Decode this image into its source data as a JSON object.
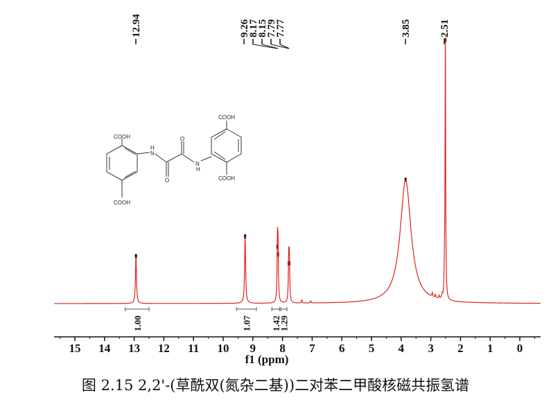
{
  "chart_data": {
    "type": "line",
    "title": "",
    "xlabel": "f1 (ppm)",
    "ylabel": "",
    "xlim": [
      15.7,
      -0.7
    ],
    "x_reversed": true,
    "ticks": [
      "15",
      "14",
      "13",
      "12",
      "11",
      "10",
      "9",
      "8",
      "7",
      "6",
      "5",
      "4",
      "3",
      "2",
      "1",
      "0"
    ],
    "grid": false,
    "series_color": "#e02020",
    "intensity_scale": "relative, tallest peak = 100",
    "peaks": [
      {
        "label": "12.94",
        "ppm": 12.94,
        "intensity": 18,
        "width": 0.02
      },
      {
        "label": "9.26",
        "ppm": 9.26,
        "intensity": 25.5,
        "width": 0.02
      },
      {
        "label": "8.17",
        "ppm": 8.17,
        "intensity": 21.6,
        "width": 0.015
      },
      {
        "label": "8.15",
        "ppm": 8.15,
        "intensity": 18.7,
        "width": 0.015
      },
      {
        "label": "7.79",
        "ppm": 7.79,
        "intensity": 15.3,
        "width": 0.015
      },
      {
        "label": "7.77",
        "ppm": 7.77,
        "intensity": 15.3,
        "width": 0.015
      },
      {
        "label": "3.85",
        "ppm": 3.85,
        "intensity": 47,
        "width": 0.22
      },
      {
        "label": "2.51",
        "ppm": 2.51,
        "intensity": 100,
        "width": 0.012
      }
    ],
    "minor_peaks": [
      {
        "ppm": 7.35,
        "intensity": 1.2
      },
      {
        "ppm": 7.05,
        "intensity": 0.8
      },
      {
        "ppm": 2.95,
        "intensity": 1.5
      },
      {
        "ppm": 2.85,
        "intensity": 1.2
      },
      {
        "ppm": 2.72,
        "intensity": 1.1
      },
      {
        "ppm": 2.62,
        "intensity": 1.3
      },
      {
        "ppm": 2.54,
        "intensity": 8
      }
    ],
    "integrals": [
      {
        "label": "1.00",
        "from": 13.3,
        "to": 12.5
      },
      {
        "label": "1.07",
        "from": 9.55,
        "to": 8.88
      },
      {
        "label": "1.42",
        "from": 8.36,
        "to": 8.1
      },
      {
        "label": "1.29",
        "from": 8.06,
        "to": 7.85
      }
    ]
  },
  "structure": {
    "cooh": "COOH",
    "nh_n": "N",
    "nh_h": "H",
    "oxygen": "O"
  },
  "caption": "图 2.15 2,2'-(草酰双(氮杂二基))二对苯二甲酸核磁共振氢谱"
}
